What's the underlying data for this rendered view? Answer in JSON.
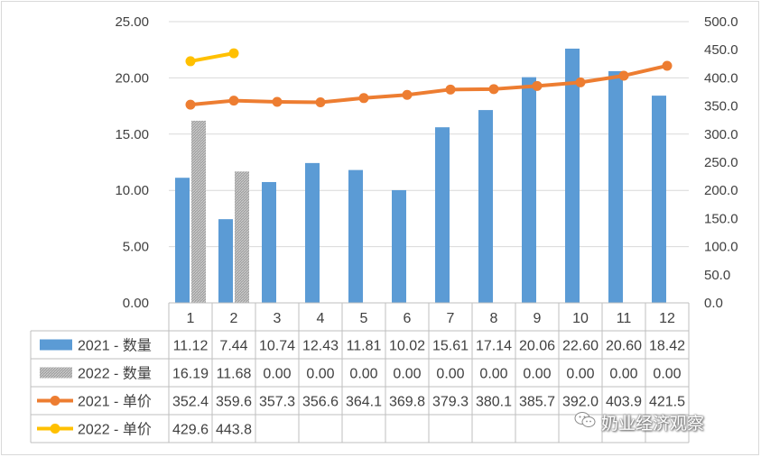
{
  "chart_data": {
    "type": "bar+line combo with data table",
    "categories": [
      "1",
      "2",
      "3",
      "4",
      "5",
      "6",
      "7",
      "8",
      "9",
      "10",
      "11",
      "12"
    ],
    "left_axis": {
      "ylim": [
        0,
        25
      ],
      "ticks": [
        "0.00",
        "5.00",
        "10.00",
        "15.00",
        "20.00",
        "25.00"
      ]
    },
    "right_axis": {
      "ylim": [
        0,
        500
      ],
      "ticks": [
        "0.0",
        "50.0",
        "100.0",
        "150.0",
        "200.0",
        "250.0",
        "300.0",
        "350.0",
        "400.0",
        "450.0",
        "500.0"
      ]
    },
    "grid": true,
    "legend": "data table below chart",
    "series": [
      {
        "name": "2021 - 数量",
        "kind": "bar",
        "axis": "left",
        "color": "#5b9bd5",
        "values": [
          11.12,
          7.44,
          10.74,
          12.43,
          11.81,
          10.02,
          15.61,
          17.14,
          20.06,
          22.6,
          20.6,
          18.42
        ],
        "labels": [
          "11.12",
          "7.44",
          "10.74",
          "12.43",
          "11.81",
          "10.02",
          "15.61",
          "17.14",
          "20.06",
          "22.60",
          "20.60",
          "18.42"
        ]
      },
      {
        "name": "2022 - 数量",
        "kind": "bar",
        "axis": "left",
        "color": "#a5a5a5",
        "pattern": "hatched",
        "values": [
          16.19,
          11.68,
          0,
          0,
          0,
          0,
          0,
          0,
          0,
          0,
          0,
          0
        ],
        "labels": [
          "16.19",
          "11.68",
          "0.00",
          "0.00",
          "0.00",
          "0.00",
          "0.00",
          "0.00",
          "0.00",
          "0.00",
          "0.00",
          "0.00"
        ]
      },
      {
        "name": "2021 - 单价",
        "kind": "line",
        "axis": "right",
        "color": "#ed7d31",
        "values": [
          352.4,
          359.6,
          357.3,
          356.6,
          364.1,
          369.8,
          379.3,
          380.1,
          385.7,
          392.0,
          403.9,
          421.5
        ],
        "labels": [
          "352.4",
          "359.6",
          "357.3",
          "356.6",
          "364.1",
          "369.8",
          "379.3",
          "380.1",
          "385.7",
          "392.0",
          "403.9",
          "421.5"
        ]
      },
      {
        "name": "2022 -  单价",
        "kind": "line",
        "axis": "right",
        "color": "#ffc000",
        "values": [
          429.6,
          443.8,
          null,
          null,
          null,
          null,
          null,
          null,
          null,
          null,
          null,
          null
        ],
        "labels": [
          "429.6",
          "443.8",
          "",
          "",
          "",
          "",
          "",
          "",
          "",
          "",
          "",
          ""
        ]
      }
    ]
  },
  "watermark": {
    "text": "奶业经济观察",
    "icon": "wechat-icon"
  }
}
